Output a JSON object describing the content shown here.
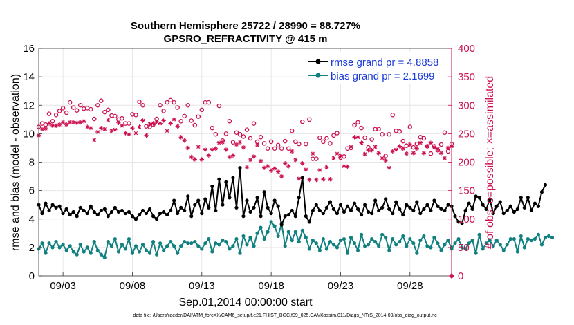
{
  "colors": {
    "rmse": "#000000",
    "bias": "#118080",
    "obs": "#cc1150",
    "legend_text": "#1a3adb",
    "grid": "#e6e6e6"
  },
  "header": {
    "title_line1": "Southern Hemisphere 25722 / 28990 = 88.727%",
    "title_line2": "GPSRO_REFRACTIVITY @ 415 m"
  },
  "footer": {
    "datafile": "data file: /Users/raeder/DAI/ATM_forcXX/CAM6_setup/f.e21.FHIST_BGC.f09_025.CAM6assim.011/Diags_NTrS_2014-09/obs_diag_output.nc"
  },
  "chart_data": {
    "type": "line",
    "title": "Southern Hemisphere 25722 / 28990 = 88.727%",
    "subtitle": "GPSRO_REFRACTIVITY @ 415 m",
    "xlabel": "Sep.01,2014 00:00:00 start",
    "ylabel": "rmse and bias (model - observation)",
    "ylabel_right": "# of obs: o=possible; ×=assimilated",
    "xlim": [
      1.25,
      31.0
    ],
    "ylim": [
      0,
      16
    ],
    "ylim_right": [
      0,
      400
    ],
    "x_ticks": [
      3,
      8,
      13,
      18,
      23,
      28
    ],
    "x_tick_labels": [
      "09/03",
      "09/08",
      "09/13",
      "09/18",
      "09/23",
      "09/28"
    ],
    "y_ticks": [
      "0",
      "2",
      "4",
      "6",
      "8",
      "10",
      "12",
      "14",
      "16"
    ],
    "y_ticks_right": [
      "0",
      "50",
      "100",
      "150",
      "200",
      "250",
      "300",
      "350",
      "400"
    ],
    "grid": true,
    "legend_position": "top-right",
    "legend": [
      "rmse grand pr =  4.8858",
      "bias grand pr =  2.1699"
    ],
    "x_start": 1.25,
    "x_step": 0.25,
    "series": [
      {
        "name": "rmse grand pr =  4.8858",
        "axis": "left",
        "style": "line-dot",
        "values": [
          5.0,
          4.4,
          5.1,
          4.6,
          5.0,
          4.8,
          4.9,
          4.4,
          4.7,
          4.3,
          4.5,
          4.2,
          4.8,
          4.6,
          4.4,
          4.9,
          4.5,
          4.3,
          4.6,
          4.7,
          4.2,
          4.5,
          4.8,
          4.5,
          4.6,
          4.4,
          4.5,
          4.2,
          4.0,
          4.3,
          4.6,
          4.4,
          4.7,
          4.2,
          4.0,
          4.4,
          4.5,
          4.3,
          4.6,
          5.3,
          4.4,
          4.8,
          4.6,
          5.6,
          4.2,
          5.0,
          5.3,
          4.4,
          5.4,
          4.8,
          6.3,
          4.6,
          6.8,
          5.0,
          6.6,
          5.5,
          6.9,
          4.8,
          7.6,
          4.2,
          5.3,
          4.5,
          4.8,
          5.5,
          4.2,
          5.9,
          4.8,
          4.4,
          5.3,
          4.9,
          3.6,
          4.2,
          4.3,
          4.6,
          4.2,
          5.5,
          6.9,
          4.2,
          3.8,
          4.6,
          5.0,
          4.6,
          4.4,
          4.8,
          5.2,
          4.7,
          4.4,
          5.0,
          4.5,
          4.9,
          4.6,
          5.1,
          4.7,
          4.3,
          5.0,
          4.5,
          4.4,
          5.3,
          4.6,
          4.8,
          5.4,
          4.7,
          4.4,
          5.2,
          4.7,
          4.3,
          5.0,
          4.8,
          4.6,
          5.2,
          4.4,
          4.7,
          5.0,
          4.6,
          5.3,
          4.9,
          4.7,
          4.6,
          5.0,
          4.9,
          4.2,
          3.8,
          3.7,
          4.6,
          5.1,
          4.7,
          5.6,
          5.5,
          5.0,
          4.7,
          5.4,
          4.4,
          4.9,
          5.2,
          4.4,
          4.6,
          4.9,
          4.5,
          4.7,
          5.5,
          4.8,
          5.5,
          4.6,
          5.1,
          4.9,
          5.9,
          6.4
        ]
      },
      {
        "name": "bias grand pr =  2.1699",
        "axis": "left",
        "style": "line-dot",
        "values": [
          1.9,
          2.3,
          1.6,
          2.3,
          2.0,
          2.4,
          2.0,
          2.2,
          1.8,
          2.1,
          1.7,
          1.5,
          2.2,
          1.7,
          2.0,
          1.6,
          2.4,
          1.8,
          1.5,
          1.3,
          2.4,
          2.1,
          2.6,
          1.7,
          2.2,
          1.9,
          2.6,
          1.6,
          2.1,
          1.7,
          2.2,
          1.8,
          1.6,
          2.4,
          1.5,
          2.3,
          1.8,
          2.1,
          2.4,
          2.1,
          1.6,
          2.1,
          2.4,
          2.3,
          2.3,
          2.4,
          2.1,
          1.9,
          2.3,
          2.6,
          1.7,
          2.3,
          2.2,
          2.5,
          2.4,
          1.9,
          2.1,
          2.6,
          1.6,
          2.8,
          2.2,
          2.7,
          2.1,
          3.0,
          3.4,
          2.6,
          3.1,
          3.8,
          3.5,
          2.8,
          3.7,
          2.1,
          3.1,
          2.5,
          3.1,
          2.4,
          3.2,
          2.7,
          1.9,
          2.5,
          2.3,
          1.8,
          2.6,
          1.9,
          2.4,
          2.2,
          2.0,
          2.5,
          2.6,
          1.6,
          2.7,
          2.3,
          1.8,
          2.9,
          2.1,
          2.2,
          2.6,
          2.4,
          2.1,
          2.9,
          2.7,
          1.8,
          2.6,
          2.2,
          2.4,
          2.8,
          2.1,
          2.6,
          2.3,
          1.6,
          2.5,
          2.8,
          2.1,
          2.0,
          2.7,
          2.3,
          1.8,
          2.2,
          2.5,
          1.9,
          2.3,
          2.6,
          2.0,
          1.9,
          2.3,
          2.5,
          1.6,
          2.9,
          1.9,
          2.3,
          2.5,
          2.1,
          2.5,
          2.2,
          1.8,
          2.2,
          2.6,
          2.6,
          1.7,
          2.8,
          2.0,
          2.6,
          2.5,
          2.6,
          2.9,
          2.2,
          2.7,
          2.8,
          2.7
        ]
      },
      {
        "name": "# of obs possible",
        "axis": "right",
        "style": "circle",
        "values": [
          262,
          268,
          266,
          285,
          272,
          283,
          290,
          295,
          287,
          305,
          296,
          291,
          300,
          294,
          295,
          293,
          276,
          300,
          308,
          288,
          292,
          282,
          281,
          275,
          277,
          268,
          268,
          284,
          283,
          306,
          300,
          263,
          262,
          266,
          276,
          300,
          290,
          305,
          309,
          305,
          296,
          272,
          281,
          300,
          273,
          265,
          280,
          292,
          305,
          305,
          260,
          249,
          299,
          238,
          250,
          272,
          235,
          252,
          249,
          245,
          257,
          242,
          268,
          236,
          244,
          233,
          224,
          236,
          224,
          230,
          224,
          237,
          224,
          255,
          236,
          232,
          271,
          232,
          275,
          206,
          206,
          243,
          236,
          242,
          233,
          247,
          251,
          208,
          210,
          224,
          225,
          265,
          270,
          260,
          243,
          226,
          240,
          258,
          258,
          249,
          211,
          249,
          283,
          255,
          254,
          237,
          229,
          262,
          226,
          232,
          244,
          242,
          228,
          215,
          228,
          221,
          231,
          252,
          219,
          232,
          205,
          244,
          227,
          209,
          202,
          222,
          213,
          235,
          247,
          223,
          223,
          221,
          217,
          219,
          211,
          214,
          216,
          219,
          237,
          237,
          258,
          237,
          282,
          236,
          263,
          262,
          270,
          288,
          267,
          258,
          258,
          248
        ]
      },
      {
        "name": "# of obs assimilated",
        "axis": "right",
        "style": "asterisk",
        "values": [
          247,
          258,
          259,
          268,
          264,
          264,
          266,
          270,
          266,
          270,
          270,
          269,
          270,
          272,
          262,
          260,
          239,
          253,
          260,
          258,
          274,
          255,
          257,
          269,
          264,
          251,
          249,
          260,
          251,
          262,
          273,
          247,
          267,
          268,
          271,
          268,
          273,
          255,
          268,
          275,
          263,
          244,
          238,
          225,
          209,
          205,
          227,
          205,
          222,
          212,
          222,
          224,
          234,
          235,
          222,
          209,
          212,
          231,
          235,
          226,
          191,
          204,
          210,
          230,
          202,
          190,
          193,
          185,
          189,
          183,
          175,
          198,
          193,
          219,
          204,
          171,
          198,
          187,
          169,
          215,
          169,
          186,
          170,
          191,
          170,
          207,
          215,
          211,
          193,
          192,
          227,
          244,
          244,
          234,
          214,
          221,
          221,
          227,
          216,
          207,
          203,
          190,
          219,
          222,
          228,
          224,
          215,
          231,
          216,
          224,
          234,
          216,
          228,
          234,
          226,
          223,
          216,
          207,
          225,
          228,
          219,
          223,
          208,
          207,
          225,
          209,
          198,
          221,
          223,
          227,
          229,
          202,
          219,
          209,
          225,
          193,
          213,
          204,
          203,
          213,
          211,
          209,
          222,
          236,
          250,
          212,
          223,
          229,
          243,
          231,
          233,
          212
        ]
      }
    ]
  }
}
